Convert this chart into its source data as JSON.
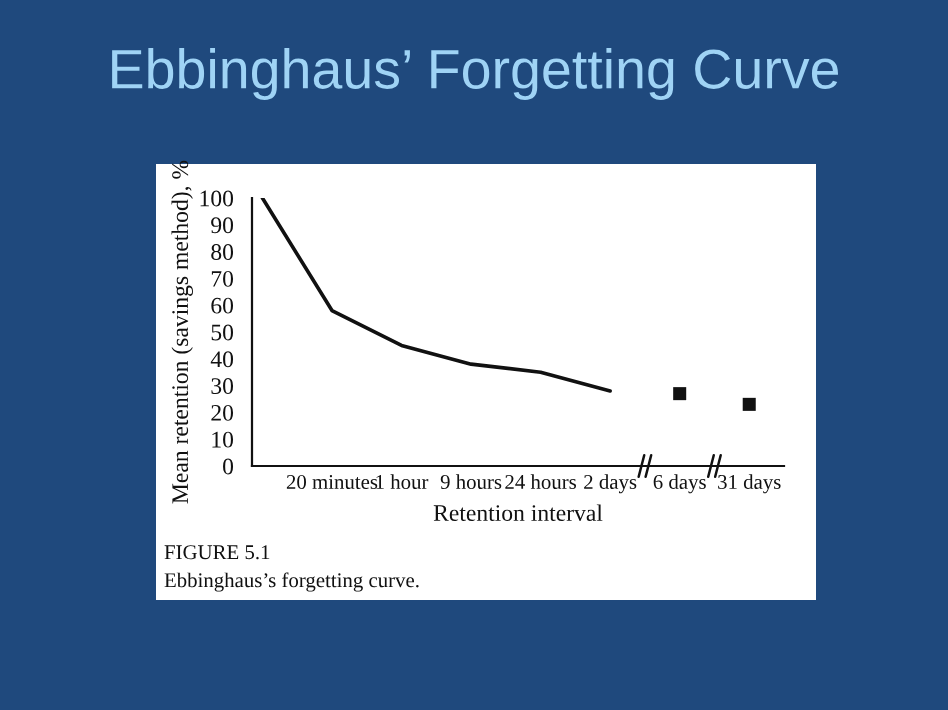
{
  "chart_data": {
    "type": "line",
    "title": "Ebbinghaus’ Forgetting Curve",
    "xlabel": "Retention interval",
    "ylabel": "Mean retention (savings method), %",
    "annotations": [
      "FIGURE 5.1",
      "Ebbinghaus’s forgetting curve."
    ],
    "categories": [
      null,
      "20 minutes",
      "1 hour",
      "9 hours",
      "24 hours",
      "2 days",
      "6 days",
      "31 days"
    ],
    "series": [
      {
        "color": "#111111",
        "values": [
          100,
          58,
          45,
          38,
          35,
          28,
          null,
          null
        ]
      },
      {
        "type": "scatter",
        "marker": "square",
        "color": "#111111",
        "values": [
          null,
          null,
          null,
          null,
          null,
          null,
          27,
          23
        ]
      }
    ],
    "ylim": [
      0,
      100
    ],
    "yticks": [
      0,
      10,
      20,
      30,
      40,
      50,
      60,
      70,
      80,
      90,
      100
    ],
    "grid": false,
    "legend": false
  }
}
